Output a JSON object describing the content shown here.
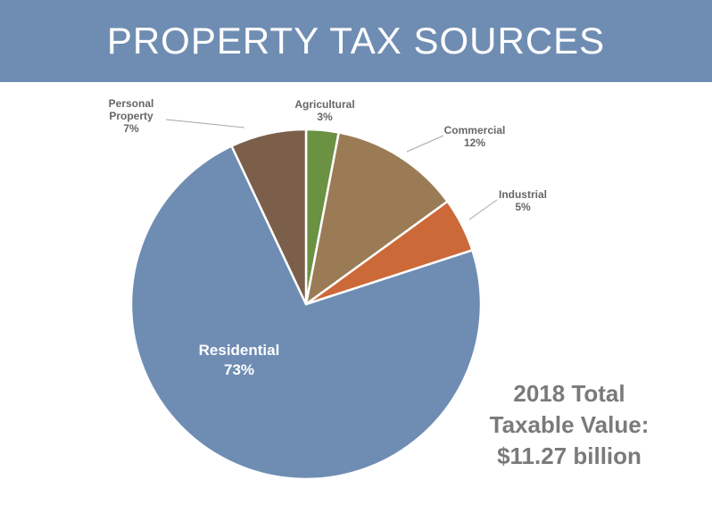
{
  "header": {
    "title": "PROPERTY TAX SOURCES"
  },
  "chart_data": {
    "type": "pie",
    "title": "PROPERTY TAX SOURCES",
    "unit": "%",
    "slices": [
      {
        "label": "Agricultural",
        "label_lines": [
          "Agricultural"
        ],
        "value": 3,
        "value_text": "3%",
        "color": "#6b9143"
      },
      {
        "label": "Commercial",
        "label_lines": [
          "Commercial"
        ],
        "value": 12,
        "value_text": "12%",
        "color": "#9b7b55"
      },
      {
        "label": "Industrial",
        "label_lines": [
          "Industrial"
        ],
        "value": 5,
        "value_text": "5%",
        "color": "#cc6938"
      },
      {
        "label": "Residential",
        "label_lines": [
          "Residential"
        ],
        "value": 73,
        "value_text": "73%",
        "color": "#6f8db3"
      },
      {
        "label": "Personal Property",
        "label_lines": [
          "Personal",
          "Property"
        ],
        "value": 7,
        "value_text": "7%",
        "color": "#7b5f4a"
      }
    ]
  },
  "summary": {
    "line1": "2018 Total",
    "line2": "Taxable Value:",
    "line3": "$11.27 billion"
  }
}
